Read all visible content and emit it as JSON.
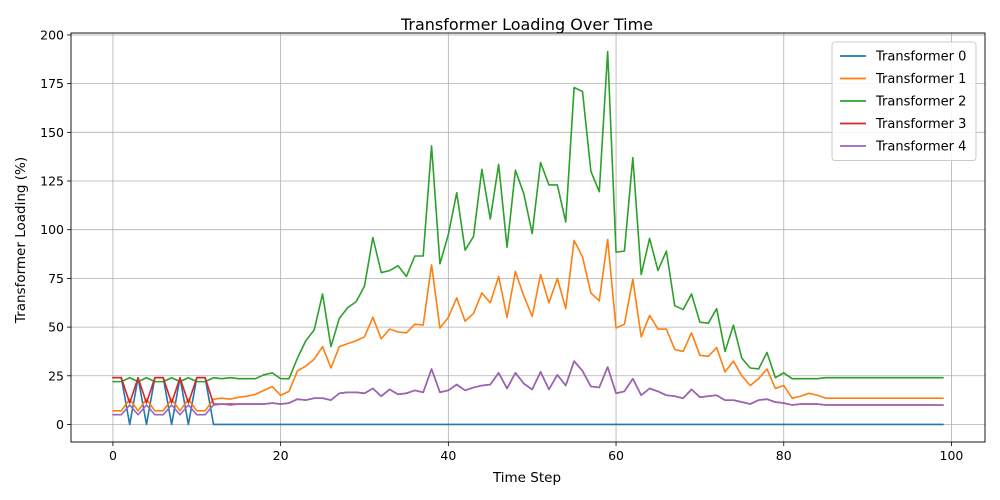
{
  "chart_data": {
    "type": "line",
    "title": "Transformer Loading Over Time",
    "xlabel": "Time Step",
    "ylabel": "Transformer Loading (%)",
    "xlim": [
      -5,
      104
    ],
    "ylim": [
      -9,
      201
    ],
    "xticks": [
      0,
      20,
      40,
      60,
      80,
      100
    ],
    "yticks": [
      0,
      25,
      50,
      75,
      100,
      125,
      150,
      175,
      200
    ],
    "grid": true,
    "legend_position": "top-right",
    "series": [
      {
        "name": "Transformer 0",
        "color": "#1f77b4",
        "values": [
          24,
          24,
          0,
          24,
          0,
          24,
          24,
          0,
          24,
          0,
          24,
          24,
          0,
          0,
          0,
          0,
          0,
          0,
          0,
          0,
          0,
          0,
          0,
          0,
          0,
          0,
          0,
          0,
          0,
          0,
          0,
          0,
          0,
          0,
          0,
          0,
          0,
          0,
          0,
          0,
          0,
          0,
          0,
          0,
          0,
          0,
          0,
          0,
          0,
          0,
          0,
          0,
          0,
          0,
          0,
          0,
          0,
          0,
          0,
          0,
          0,
          0,
          0,
          0,
          0,
          0,
          0,
          0,
          0,
          0,
          0,
          0,
          0,
          0,
          0,
          0,
          0,
          0,
          0,
          0,
          0,
          0,
          0,
          0,
          0,
          0,
          0,
          0,
          0,
          0,
          0,
          0,
          0,
          0,
          0,
          0,
          0,
          0,
          0,
          0
        ]
      },
      {
        "name": "Transformer 1",
        "color": "#ff7f0e",
        "values": [
          7,
          7,
          13,
          7,
          13,
          7,
          7,
          13,
          7,
          13,
          7,
          7,
          13,
          13.5,
          13,
          14,
          14.5,
          15.5,
          17.5,
          19.5,
          15,
          17,
          27.5,
          30,
          33.5,
          40,
          29,
          40,
          41.5,
          43,
          45,
          55,
          44,
          49,
          47.5,
          47,
          51.5,
          51,
          82,
          49.5,
          55,
          65,
          53,
          57,
          67.5,
          62.5,
          76,
          55,
          78.5,
          66,
          55.5,
          77,
          62.5,
          75,
          59.5,
          94.5,
          86,
          67.5,
          63.5,
          95,
          49.5,
          51.5,
          74.5,
          45,
          56,
          49,
          49,
          38.5,
          37.5,
          47,
          35.5,
          35,
          39.5,
          27,
          32.5,
          25,
          20,
          23.5,
          28.5,
          18.5,
          20,
          13.5,
          14.5,
          16,
          15,
          13.5,
          13.5,
          13.5,
          13.5,
          13.5,
          13.5,
          13.5,
          13.5,
          13.5,
          13.5,
          13.5,
          13.5,
          13.5,
          13.5,
          13.5
        ]
      },
      {
        "name": "Transformer 2",
        "color": "#2ca02c",
        "values": [
          22,
          22,
          24,
          22,
          24,
          22,
          22,
          24,
          22,
          24,
          22,
          22,
          24,
          23.5,
          24,
          23.5,
          23.5,
          23.5,
          25.5,
          26.5,
          23.5,
          23.5,
          34,
          43,
          48.5,
          67,
          40,
          54.5,
          60,
          63,
          71,
          96,
          78,
          79,
          81.5,
          76,
          86.5,
          86.5,
          143,
          82.5,
          97.5,
          119,
          89.5,
          96.5,
          131,
          105.5,
          133.5,
          91,
          130.5,
          118.5,
          98,
          134.5,
          123,
          123,
          104,
          173,
          171,
          130,
          119.5,
          191.5,
          88.5,
          89,
          137,
          77,
          95.5,
          79,
          89,
          61,
          59,
          67,
          52.5,
          52,
          59.5,
          37.5,
          51,
          34,
          29,
          28.5,
          37,
          24,
          26.5,
          23.5,
          23.5,
          23.5,
          23.5,
          24,
          24,
          24,
          24,
          24,
          24,
          24,
          24,
          24,
          24,
          24,
          24,
          24,
          24,
          24
        ]
      },
      {
        "name": "Transformer 3",
        "color": "#d62728",
        "values": [
          24,
          24,
          11,
          24,
          11,
          24,
          24,
          11,
          24,
          11,
          24,
          24,
          10.5,
          10.5,
          10.5,
          10.5,
          10.5,
          10.5,
          10.5,
          11,
          10.5,
          11,
          13,
          12.5,
          13.5,
          13.5,
          12.5,
          16,
          16.5,
          16.5,
          16,
          18.5,
          14.5,
          18,
          15.5,
          16,
          17.5,
          16.5,
          28.5,
          16.5,
          17.5,
          20.5,
          17.5,
          19,
          20,
          20.5,
          26.5,
          18.5,
          26.5,
          21,
          18,
          27,
          18,
          25.5,
          20,
          32.5,
          27.5,
          19.5,
          19,
          29.5,
          16,
          17,
          23.5,
          15,
          18.5,
          17,
          15,
          14.5,
          13.5,
          18,
          14,
          14.5,
          15,
          12.5,
          12.5,
          11.5,
          10.5,
          12.5,
          13,
          11.5,
          11,
          10,
          10.5,
          10.5,
          10.5,
          10,
          10,
          10,
          10,
          10,
          10,
          10,
          10,
          10,
          10,
          10,
          10,
          10,
          10,
          10
        ]
      },
      {
        "name": "Transformer 4",
        "color": "#9467bd",
        "values": [
          5,
          5,
          10,
          5,
          10,
          5,
          5,
          10,
          5,
          10,
          5,
          5,
          10,
          10.5,
          10,
          10.5,
          10.5,
          10.5,
          10.5,
          11,
          10.5,
          11,
          13,
          12.5,
          13.5,
          13.5,
          12.5,
          16,
          16.5,
          16.5,
          16,
          18.5,
          14.5,
          18,
          15.5,
          16,
          17.5,
          16.5,
          28.5,
          16.5,
          17.5,
          20.5,
          17.5,
          19,
          20,
          20.5,
          26.5,
          18.5,
          26.5,
          21,
          18,
          27,
          18,
          25.5,
          20,
          32.5,
          27.5,
          19.5,
          19,
          29.5,
          16,
          17,
          23.5,
          15,
          18.5,
          17,
          15,
          14.5,
          13.5,
          18,
          14,
          14.5,
          15,
          12.5,
          12.5,
          11.5,
          10.5,
          12.5,
          13,
          11.5,
          11,
          10,
          10.5,
          10.5,
          10.5,
          10,
          10,
          10,
          10,
          10,
          10,
          10,
          10,
          10,
          10,
          10,
          10,
          10,
          10,
          10
        ]
      }
    ]
  }
}
